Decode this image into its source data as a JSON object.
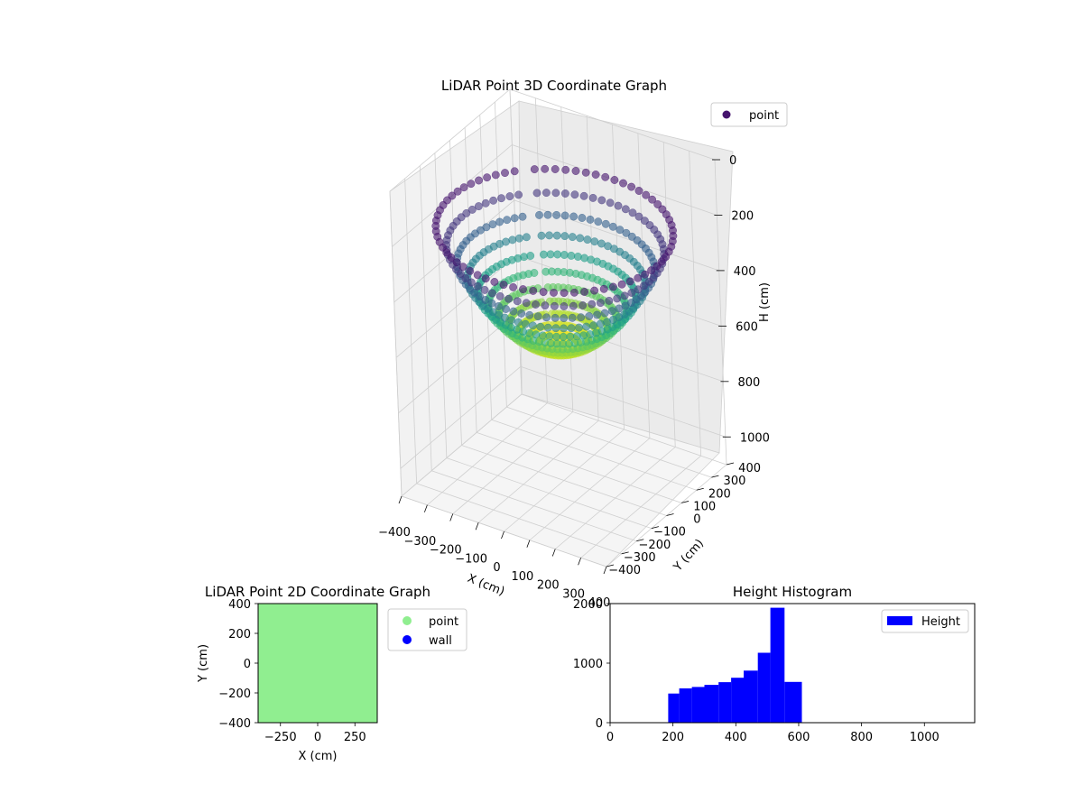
{
  "chart_data": [
    {
      "type": "scatter",
      "subtype": "3d-scatter",
      "title": "LiDAR Point 3D Coordinate Graph",
      "xlabel": "X (cm)",
      "ylabel": "Y (cm)",
      "zlabel": "H (cm)",
      "xlim": [
        -400,
        400
      ],
      "ylim": [
        -400,
        400
      ],
      "zlim": [
        1100,
        0
      ],
      "xticks": [
        "−400",
        "−300",
        "−200",
        "−100",
        "0",
        "100",
        "200",
        "300",
        "400"
      ],
      "yticks": [
        "−400",
        "−300",
        "−200",
        "−100",
        "0",
        "100",
        "200",
        "300",
        "400"
      ],
      "zticks": [
        "0",
        "200",
        "400",
        "600",
        "800",
        "1000"
      ],
      "z_inverted": true,
      "colormap": "viridis",
      "legend": [
        {
          "name": "point",
          "color": "#46146e"
        }
      ],
      "legend_position": "top-right",
      "shape": "bowl",
      "rim_radius_cm": 400,
      "rim_height_cm": 200,
      "bottom_height_cm": 620,
      "grid": true
    },
    {
      "type": "scatter",
      "title": "LiDAR Point 2D Coordinate Graph",
      "xlabel": "X (cm)",
      "ylabel": "Y (cm)",
      "xlim": [
        -400,
        400
      ],
      "ylim": [
        -400,
        400
      ],
      "xticks": [
        "−250",
        "0",
        "250"
      ],
      "yticks": [
        "400",
        "200",
        "0",
        "−200",
        "−400"
      ],
      "series": [
        {
          "name": "point",
          "color": "#90ee90"
        },
        {
          "name": "wall",
          "color": "#0000ff"
        }
      ],
      "legend_position": "right",
      "grid": false
    },
    {
      "type": "bar",
      "subtype": "histogram",
      "title": "Height Histogram",
      "xlim": [
        0,
        1160
      ],
      "ylim": [
        0,
        2000
      ],
      "xticks": [
        "0",
        "200",
        "400",
        "600",
        "800",
        "1000"
      ],
      "yticks": [
        "0",
        "1000",
        "2000"
      ],
      "series": [
        {
          "name": "Height",
          "color": "#0000ff"
        }
      ],
      "bins": [
        {
          "x0": 185,
          "x1": 220,
          "count": 490
        },
        {
          "x0": 220,
          "x1": 260,
          "count": 575
        },
        {
          "x0": 260,
          "x1": 300,
          "count": 600
        },
        {
          "x0": 300,
          "x1": 345,
          "count": 635
        },
        {
          "x0": 345,
          "x1": 385,
          "count": 680
        },
        {
          "x0": 385,
          "x1": 425,
          "count": 755
        },
        {
          "x0": 425,
          "x1": 470,
          "count": 875
        },
        {
          "x0": 470,
          "x1": 510,
          "count": 1175
        },
        {
          "x0": 510,
          "x1": 555,
          "count": 1930
        },
        {
          "x0": 555,
          "x1": 610,
          "count": 685
        }
      ],
      "legend_position": "top-right",
      "grid": false
    }
  ]
}
